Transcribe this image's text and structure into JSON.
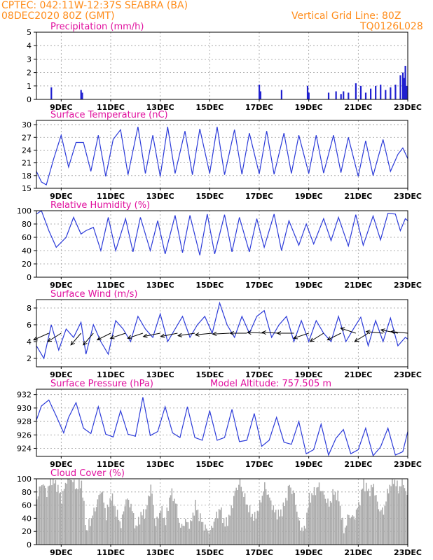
{
  "header": {
    "line1": "CPTEC:   042:11W-12:37S   SEABRA (BA)",
    "line2": "08DEC2020 80Z (GMT)",
    "grid_note": "Vertical Grid Line: 80Z",
    "code": "TQ0126L028"
  },
  "colors": {
    "header": "#ff8c1a",
    "title": "#e0109e",
    "line": "#2c3bd9",
    "bar": "#2020d0",
    "cloud": "#a9a9a9",
    "wind_vector": "#000000"
  },
  "x_axis": {
    "tick_labels": [
      "9DEC",
      "11DEC",
      "13DEC",
      "15DEC",
      "17DEC",
      "19DEC",
      "21DEC",
      "23DEC"
    ],
    "tick_days": [
      9,
      11,
      13,
      15,
      17,
      19,
      21,
      23
    ],
    "range_days": [
      8.0,
      23.0
    ]
  },
  "chart_data": [
    {
      "type": "bar",
      "title": "Precipitation (mm/h)",
      "ylim": [
        0,
        5
      ],
      "yticks": [
        0,
        1,
        2,
        3,
        4,
        5
      ],
      "x": [
        8.6,
        9.8,
        9.85,
        17.0,
        17.05,
        17.9,
        18.95,
        19.0,
        19.8,
        20.1,
        20.3,
        20.4,
        20.6,
        20.9,
        21.1,
        21.3,
        21.5,
        21.7,
        21.9,
        22.1,
        22.3,
        22.5,
        22.7,
        22.8,
        22.85,
        22.9,
        22.95
      ],
      "values": [
        0.9,
        0.7,
        0.5,
        1.1,
        0.6,
        0.7,
        1.0,
        0.5,
        0.5,
        0.6,
        0.4,
        0.6,
        0.5,
        1.2,
        1.0,
        0.5,
        0.8,
        1.0,
        1.1,
        0.7,
        0.9,
        1.1,
        1.8,
        2.0,
        1.6,
        2.5,
        1.0
      ]
    },
    {
      "type": "line",
      "title": "Surface Temperature (nC)",
      "ylim": [
        15,
        31
      ],
      "yticks": [
        15,
        18,
        21,
        24,
        27,
        30
      ],
      "series": [
        {
          "x": [
            8.0,
            8.2,
            8.4,
            8.7,
            9.0,
            9.3,
            9.6,
            9.9,
            10.2,
            10.5,
            10.8,
            11.1,
            11.4,
            11.7,
            12.1,
            12.4,
            12.7,
            13.0,
            13.3,
            13.6,
            14.0,
            14.3,
            14.6,
            15.0,
            15.3,
            15.6,
            16.0,
            16.3,
            16.6,
            17.0,
            17.3,
            17.6,
            18.0,
            18.3,
            18.6,
            19.0,
            19.3,
            19.6,
            20.0,
            20.3,
            20.6,
            21.0,
            21.3,
            21.6,
            22.0,
            22.3,
            22.6,
            22.8,
            23.0
          ],
          "values": [
            19,
            16.5,
            15.8,
            22,
            27.5,
            20,
            25.8,
            25.8,
            19,
            27.5,
            17.8,
            26.5,
            28.8,
            18.2,
            29.5,
            18.5,
            27.5,
            17.8,
            29.5,
            18.5,
            28.5,
            18.2,
            29,
            18.5,
            29.5,
            18.2,
            28.8,
            18.3,
            28,
            18.4,
            28.5,
            18.3,
            28,
            18.5,
            27.5,
            18.5,
            27.5,
            18.6,
            27.5,
            18.7,
            27,
            17.8,
            26.2,
            18,
            26.5,
            19,
            23,
            24.5,
            22
          ]
        }
      ]
    },
    {
      "type": "line",
      "title": "Relative Humidity (%)",
      "ylim": [
        0,
        100
      ],
      "yticks": [
        0,
        20,
        40,
        60,
        80,
        100
      ],
      "series": [
        {
          "x": [
            8.0,
            8.2,
            8.5,
            8.8,
            9.2,
            9.5,
            9.8,
            10.0,
            10.3,
            10.6,
            10.9,
            11.2,
            11.6,
            11.9,
            12.2,
            12.6,
            12.9,
            13.2,
            13.6,
            13.9,
            14.2,
            14.6,
            14.9,
            15.2,
            15.6,
            15.9,
            16.2,
            16.6,
            16.9,
            17.2,
            17.6,
            17.9,
            18.2,
            18.6,
            18.9,
            19.2,
            19.6,
            19.9,
            20.2,
            20.6,
            20.9,
            21.2,
            21.6,
            21.9,
            22.2,
            22.5,
            22.7,
            22.9,
            23.0
          ],
          "values": [
            95,
            100,
            70,
            45,
            60,
            90,
            65,
            70,
            75,
            40,
            90,
            40,
            88,
            38,
            90,
            40,
            85,
            35,
            93,
            37,
            93,
            33,
            95,
            35,
            94,
            38,
            90,
            38,
            88,
            45,
            95,
            40,
            85,
            48,
            80,
            50,
            88,
            55,
            90,
            47,
            94,
            48,
            92,
            56,
            96,
            95,
            70,
            88,
            85
          ]
        }
      ]
    },
    {
      "type": "line",
      "title": "Surface Wind (m/s)",
      "ylim": [
        1,
        9
      ],
      "yticks": [
        2,
        4,
        6,
        8
      ],
      "series": [
        {
          "x": [
            8.0,
            8.3,
            8.6,
            8.9,
            9.2,
            9.5,
            9.8,
            10.0,
            10.3,
            10.6,
            10.9,
            11.2,
            11.5,
            11.8,
            12.1,
            12.4,
            12.7,
            13.0,
            13.3,
            13.6,
            13.9,
            14.2,
            14.5,
            14.8,
            15.1,
            15.4,
            15.7,
            16.0,
            16.3,
            16.6,
            16.9,
            17.2,
            17.5,
            17.8,
            18.1,
            18.4,
            18.7,
            19.0,
            19.3,
            19.6,
            19.9,
            20.2,
            20.5,
            20.8,
            21.1,
            21.4,
            21.7,
            22.0,
            22.3,
            22.6,
            22.9,
            23.0
          ],
          "values": [
            3.5,
            2.0,
            6.0,
            3.0,
            5.5,
            4.5,
            6.3,
            2.5,
            6.0,
            4.0,
            2.5,
            6.5,
            5.5,
            4.0,
            7.0,
            5.5,
            4.5,
            7.3,
            4.0,
            5.5,
            7.0,
            4.5,
            6.0,
            7.0,
            5.0,
            8.6,
            6.0,
            4.5,
            7.0,
            5.0,
            7.0,
            7.7,
            4.5,
            6.0,
            7.0,
            4.0,
            6.5,
            4.0,
            6.5,
            5.0,
            4.0,
            7.0,
            4.0,
            5.5,
            6.9,
            3.5,
            6.5,
            4.0,
            6.8,
            3.5,
            4.5,
            4.3
          ]
        }
      ],
      "vectors": [
        {
          "x": 8.5,
          "u": -0.9,
          "v": -0.4
        },
        {
          "x": 9.0,
          "u": -0.8,
          "v": -0.5
        },
        {
          "x": 9.8,
          "u": -0.6,
          "v": -0.7
        },
        {
          "x": 10.3,
          "u": -0.6,
          "v": -0.7
        },
        {
          "x": 11.0,
          "u": -0.8,
          "v": -0.4
        },
        {
          "x": 11.6,
          "u": -0.9,
          "v": -0.3
        },
        {
          "x": 12.3,
          "u": -0.9,
          "v": -0.3
        },
        {
          "x": 13.0,
          "u": -1.0,
          "v": -0.2
        },
        {
          "x": 13.7,
          "u": -1.0,
          "v": -0.2
        },
        {
          "x": 14.4,
          "u": -1.0,
          "v": -0.15
        },
        {
          "x": 15.1,
          "u": -1.0,
          "v": -0.1
        },
        {
          "x": 15.8,
          "u": -1.0,
          "v": -0.05
        },
        {
          "x": 16.5,
          "u": -1.0,
          "v": 0.0
        },
        {
          "x": 17.2,
          "u": -1.0,
          "v": 0.05
        },
        {
          "x": 17.8,
          "u": -1.0,
          "v": 0.05
        },
        {
          "x": 18.4,
          "u": -1.0,
          "v": 0.0
        },
        {
          "x": 19.0,
          "u": -0.9,
          "v": -0.3
        },
        {
          "x": 19.6,
          "u": -0.8,
          "v": -0.5
        },
        {
          "x": 20.3,
          "u": -0.8,
          "v": -0.4
        },
        {
          "x": 20.9,
          "u": -0.9,
          "v": 0.3
        },
        {
          "x": 21.4,
          "u": -0.8,
          "v": -0.5
        },
        {
          "x": 22.0,
          "u": -1.0,
          "v": 0.1
        },
        {
          "x": 22.6,
          "u": -1.0,
          "v": 0.2
        },
        {
          "x": 23.0,
          "u": -1.0,
          "v": 0.1
        }
      ]
    },
    {
      "type": "line",
      "title": "Surface Pressure (hPa)",
      "subtitle": "Model Altitude: 757.505 m",
      "ylim": [
        922.8,
        932.8
      ],
      "yticks": [
        924,
        926,
        928,
        930,
        932
      ],
      "series": [
        {
          "x": [
            8.0,
            8.2,
            8.5,
            8.8,
            9.1,
            9.3,
            9.6,
            9.9,
            10.2,
            10.5,
            10.8,
            11.1,
            11.4,
            11.7,
            12.0,
            12.3,
            12.6,
            12.9,
            13.2,
            13.5,
            13.8,
            14.1,
            14.4,
            14.7,
            15.0,
            15.3,
            15.6,
            15.9,
            16.2,
            16.5,
            16.8,
            17.1,
            17.4,
            17.7,
            18.0,
            18.3,
            18.6,
            18.9,
            19.2,
            19.5,
            19.8,
            20.1,
            20.4,
            20.7,
            21.0,
            21.3,
            21.6,
            21.9,
            22.2,
            22.5,
            22.8,
            23.0
          ],
          "values": [
            928.2,
            930.3,
            931.2,
            928.8,
            926.3,
            928.6,
            930.8,
            927.0,
            926.2,
            930.2,
            926.1,
            925.7,
            929.6,
            926.1,
            925.8,
            931.6,
            925.9,
            926.5,
            930.2,
            926.3,
            925.6,
            930.2,
            925.6,
            925.2,
            929.6,
            925.2,
            925.6,
            929.8,
            925.0,
            925.2,
            929.2,
            924.3,
            925.2,
            928.6,
            924.9,
            924.6,
            928.0,
            923.2,
            923.8,
            927.6,
            923.0,
            925.5,
            926.8,
            923.2,
            923.8,
            927.0,
            922.9,
            924.2,
            927.0,
            923.0,
            923.5,
            926.5
          ]
        }
      ]
    },
    {
      "type": "area",
      "title": "Cloud Cover (%)",
      "ylim": [
        0,
        100
      ],
      "yticks": [
        0,
        20,
        40,
        60,
        80,
        100
      ],
      "series": [
        {
          "x": [
            8.0,
            8.2,
            8.4,
            8.6,
            8.8,
            9.0,
            9.2,
            9.4,
            9.6,
            9.8,
            10.0,
            10.2,
            10.4,
            10.6,
            10.8,
            11.0,
            11.2,
            11.4,
            11.6,
            11.8,
            12.0,
            12.2,
            12.4,
            12.6,
            12.8,
            13.0,
            13.2,
            13.4,
            13.6,
            13.8,
            14.0,
            14.2,
            14.4,
            14.6,
            14.8,
            15.0,
            15.2,
            15.4,
            15.6,
            15.8,
            16.0,
            16.2,
            16.4,
            16.6,
            16.8,
            17.0,
            17.2,
            17.4,
            17.6,
            17.8,
            18.0,
            18.2,
            18.4,
            18.6,
            18.8,
            19.0,
            19.2,
            19.4,
            19.6,
            19.8,
            20.0,
            20.2,
            20.4,
            20.6,
            20.8,
            21.0,
            21.2,
            21.4,
            21.6,
            21.8,
            22.0,
            22.2,
            22.4,
            22.6,
            22.8,
            23.0
          ],
          "values": [
            70,
            95,
            80,
            100,
            90,
            70,
            98,
            100,
            85,
            95,
            20,
            40,
            60,
            85,
            45,
            75,
            50,
            30,
            70,
            60,
            25,
            45,
            50,
            90,
            30,
            55,
            35,
            80,
            65,
            25,
            35,
            30,
            60,
            40,
            25,
            20,
            40,
            55,
            30,
            45,
            80,
            95,
            70,
            50,
            40,
            60,
            90,
            70,
            50,
            45,
            60,
            90,
            75,
            30,
            20,
            70,
            80,
            90,
            75,
            60,
            80,
            70,
            20,
            45,
            40,
            60,
            95,
            80,
            90,
            55,
            50,
            85,
            100,
            85,
            95,
            65
          ]
        }
      ]
    }
  ]
}
